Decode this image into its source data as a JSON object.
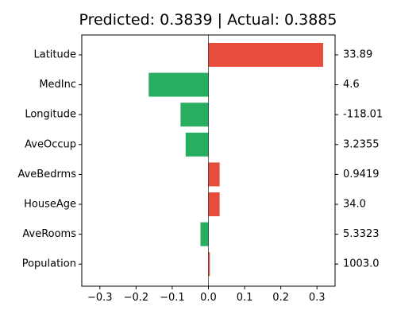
{
  "chart_data": {
    "type": "bar",
    "orientation": "horizontal",
    "title": "Predicted: 0.3839 | Actual: 0.3885",
    "categories": [
      "Latitude",
      "MedInc",
      "Longitude",
      "AveOccup",
      "AveBedrms",
      "HouseAge",
      "AveRooms",
      "Population"
    ],
    "values": [
      0.317,
      -0.165,
      -0.077,
      -0.063,
      0.031,
      0.031,
      -0.022,
      0.004
    ],
    "feature_values": [
      "33.89",
      "4.6",
      "-118.01",
      "3.2355",
      "0.9419",
      "34.0",
      "5.3323",
      "1003.0"
    ],
    "xticks": [
      -0.3,
      -0.2,
      -0.1,
      0.0,
      0.1,
      0.2,
      0.3
    ],
    "xtick_labels": [
      "−0.3",
      "−0.2",
      "−0.1",
      "0.0",
      "0.1",
      "0.2",
      "0.3"
    ],
    "xlim": [
      -0.35,
      0.35
    ],
    "xlabel": "",
    "ylabel": "",
    "grid": false,
    "colors": {
      "positive": "#e74c3c",
      "negative": "#27ae60"
    }
  }
}
